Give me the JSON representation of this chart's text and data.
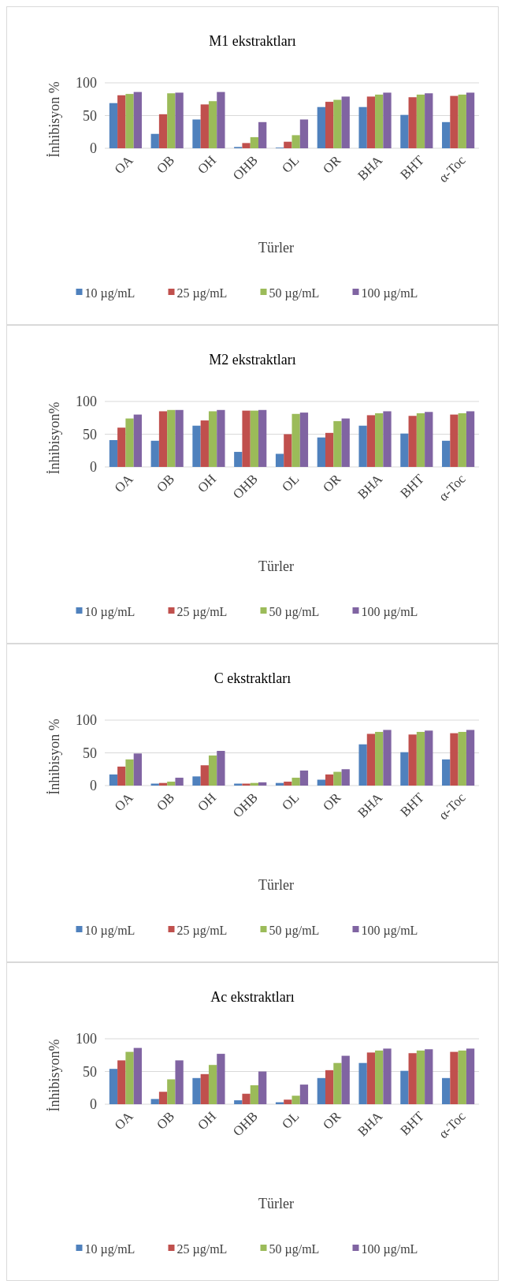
{
  "chart_data": [
    {
      "type": "bar",
      "title": "M1 ekstraktları",
      "xlabel": "Türler",
      "ylabel": "İnhibisyon %",
      "categories": [
        "OA",
        "OB",
        "OH",
        "OHB",
        "OL",
        "OR",
        "BHA",
        "BHT",
        "α-Toc"
      ],
      "ylim": [
        0,
        100
      ],
      "yticks": [
        0,
        50,
        100
      ],
      "grid": "y",
      "legend": "bottom",
      "series": [
        {
          "name": "10 µg/mL",
          "color": "#4f81bd",
          "values": [
            69,
            22,
            44,
            2,
            1,
            63,
            63,
            51,
            40
          ]
        },
        {
          "name": "25 µg/mL",
          "color": "#c0504d",
          "values": [
            81,
            52,
            67,
            8,
            10,
            71,
            79,
            78,
            80
          ]
        },
        {
          "name": "50 µg/mL",
          "color": "#9bbb59",
          "values": [
            83,
            84,
            72,
            17,
            20,
            74,
            82,
            82,
            82
          ]
        },
        {
          "name": "100 µg/mL",
          "color": "#8064a2",
          "values": [
            86,
            85,
            86,
            40,
            44,
            79,
            85,
            84,
            85
          ]
        }
      ]
    },
    {
      "type": "bar",
      "title": "M2 ekstraktları",
      "xlabel": "Türler",
      "ylabel": "İnhibisyon%",
      "categories": [
        "OA",
        "OB",
        "OH",
        "OHB",
        "OL",
        "OR",
        "BHA",
        "BHT",
        "α-Toc"
      ],
      "ylim": [
        0,
        100
      ],
      "yticks": [
        0,
        50,
        100
      ],
      "grid": "y",
      "legend": "bottom",
      "series": [
        {
          "name": "10 µg/mL",
          "color": "#4f81bd",
          "values": [
            41,
            40,
            63,
            23,
            20,
            45,
            63,
            51,
            40
          ]
        },
        {
          "name": "25 µg/mL",
          "color": "#c0504d",
          "values": [
            60,
            85,
            71,
            86,
            50,
            52,
            79,
            78,
            80
          ]
        },
        {
          "name": "50 µg/mL",
          "color": "#9bbb59",
          "values": [
            74,
            87,
            85,
            86,
            81,
            70,
            82,
            82,
            82
          ]
        },
        {
          "name": "100 µg/mL",
          "color": "#8064a2",
          "values": [
            80,
            87,
            87,
            87,
            83,
            74,
            85,
            84,
            85
          ]
        }
      ]
    },
    {
      "type": "bar",
      "title": "C ekstraktları",
      "xlabel": "Türler",
      "ylabel": "İnhibisyon %",
      "categories": [
        "OA",
        "OB",
        "OH",
        "OHB",
        "OL",
        "OR",
        "BHA",
        "BHT",
        "α-Toc"
      ],
      "ylim": [
        0,
        100
      ],
      "yticks": [
        0,
        50,
        100
      ],
      "grid": "y",
      "legend": "bottom",
      "series": [
        {
          "name": "10 µg/mL",
          "color": "#4f81bd",
          "values": [
            17,
            3,
            14,
            3,
            4,
            9,
            63,
            51,
            40
          ]
        },
        {
          "name": "25 µg/mL",
          "color": "#c0504d",
          "values": [
            29,
            4,
            31,
            3,
            6,
            17,
            79,
            78,
            80
          ]
        },
        {
          "name": "50 µg/mL",
          "color": "#9bbb59",
          "values": [
            40,
            6,
            46,
            4,
            12,
            21,
            82,
            82,
            82
          ]
        },
        {
          "name": "100 µg/mL",
          "color": "#8064a2",
          "values": [
            49,
            12,
            53,
            5,
            23,
            25,
            85,
            84,
            85
          ]
        }
      ]
    },
    {
      "type": "bar",
      "title": "Ac ekstraktları",
      "xlabel": "Türler",
      "ylabel": "İnhibisyon%",
      "categories": [
        "OA",
        "OB",
        "OH",
        "OHB",
        "OL",
        "OR",
        "BHA",
        "BHT",
        "α-Toc"
      ],
      "ylim": [
        0,
        100
      ],
      "yticks": [
        0,
        50,
        100
      ],
      "grid": "y",
      "legend": "bottom",
      "series": [
        {
          "name": "10 µg/mL",
          "color": "#4f81bd",
          "values": [
            54,
            8,
            40,
            6,
            3,
            40,
            63,
            51,
            40
          ]
        },
        {
          "name": "25 µg/mL",
          "color": "#c0504d",
          "values": [
            67,
            19,
            46,
            16,
            7,
            52,
            79,
            78,
            80
          ]
        },
        {
          "name": "50 µg/mL",
          "color": "#9bbb59",
          "values": [
            80,
            38,
            60,
            29,
            13,
            63,
            82,
            82,
            82
          ]
        },
        {
          "name": "100 µg/mL",
          "color": "#8064a2",
          "values": [
            86,
            67,
            77,
            50,
            30,
            74,
            85,
            84,
            85
          ]
        }
      ]
    }
  ]
}
